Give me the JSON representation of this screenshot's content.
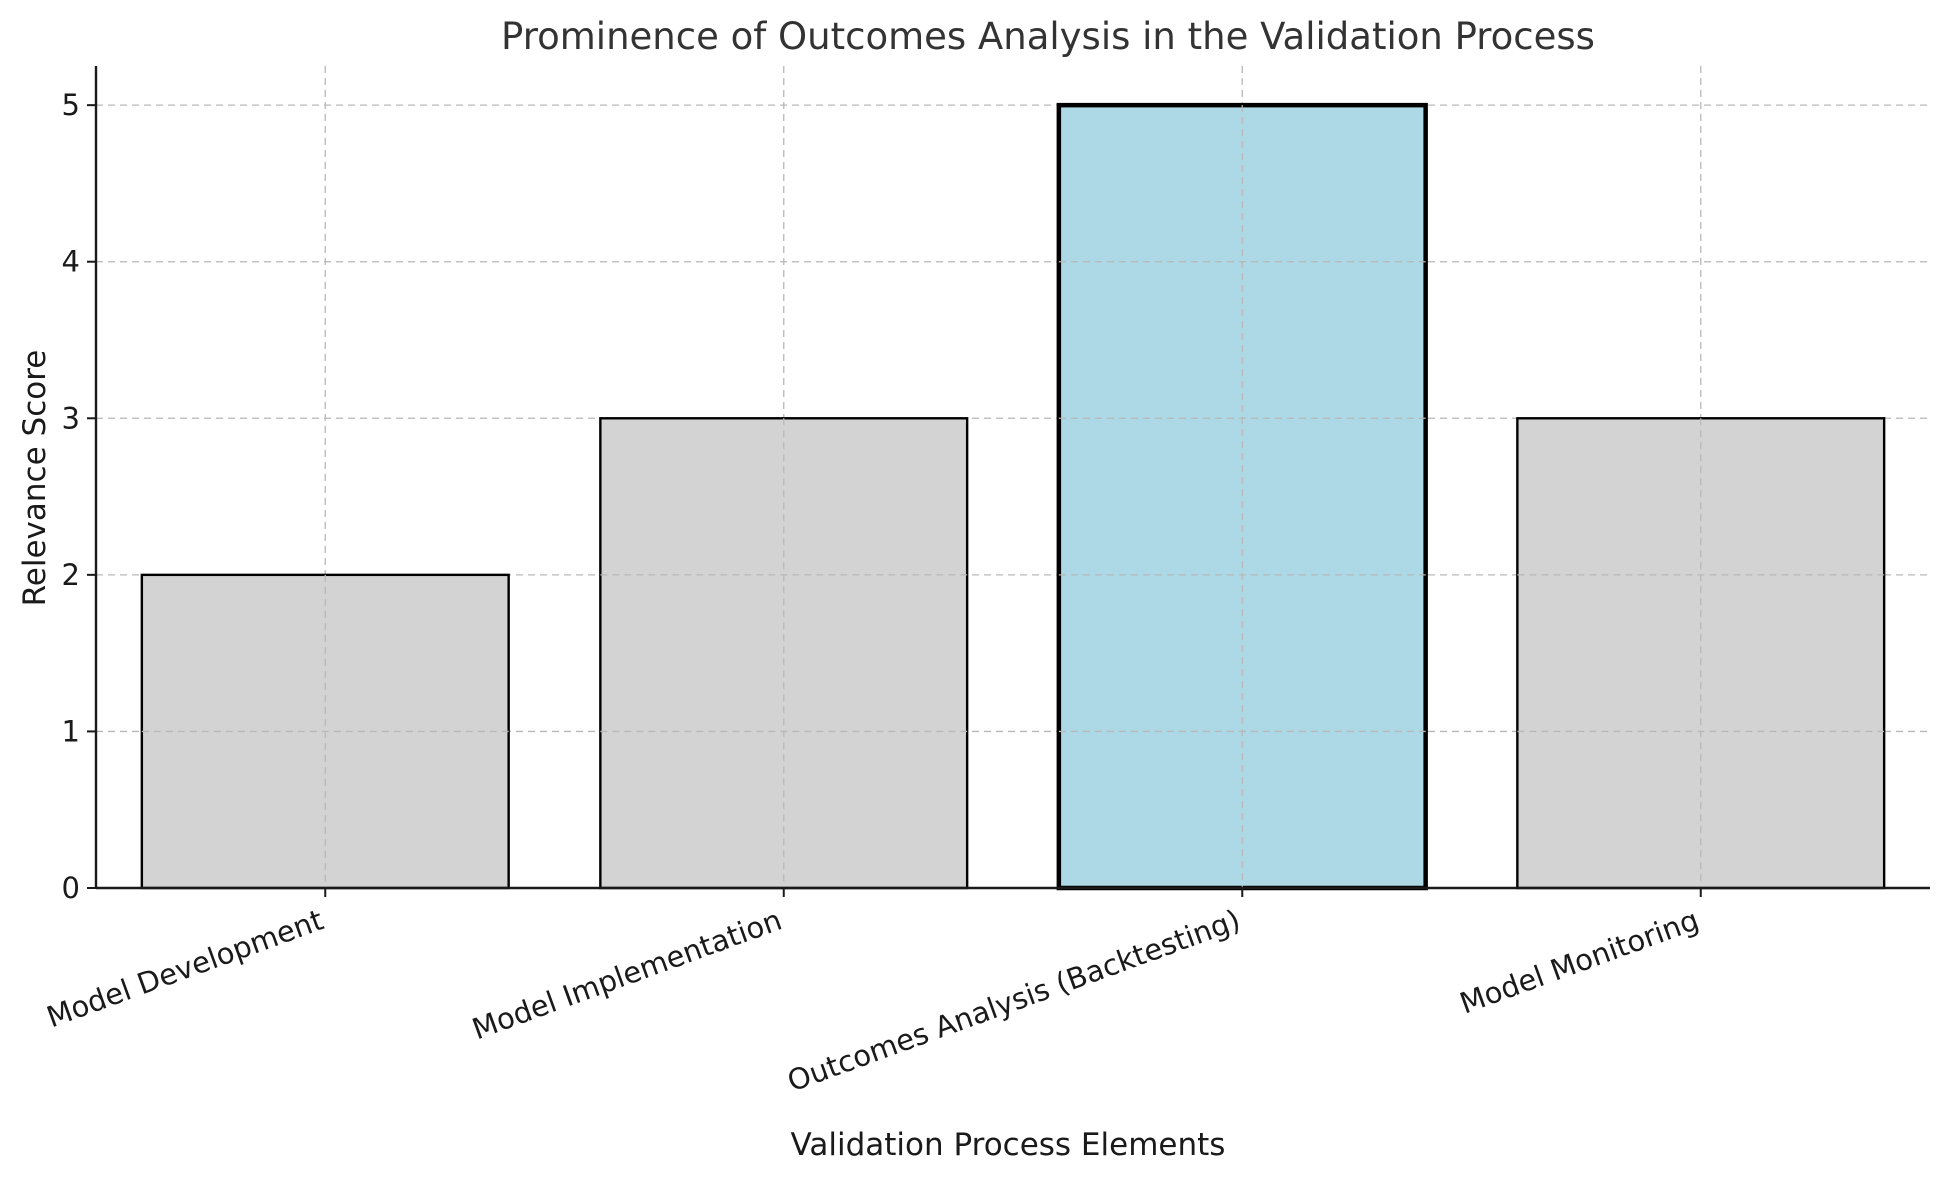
{
  "chart_data": {
    "type": "bar",
    "title": "Prominence of Outcomes Analysis in the Validation Process",
    "xlabel": "Validation Process Elements",
    "ylabel": "Relevance Score",
    "categories": [
      "Model Development",
      "Model Implementation",
      "Outcomes Analysis (Backtesting)",
      "Model Monitoring"
    ],
    "values": [
      2,
      3,
      5,
      3
    ],
    "highlight_index": 2,
    "ylim": [
      0,
      5.25
    ],
    "yticks": [
      0,
      1,
      2,
      3,
      4,
      5
    ],
    "grid": true,
    "colors": {
      "bar_default": "#d3d3d3",
      "bar_highlight": "#add8e6",
      "bar_edge": "#000000"
    }
  }
}
